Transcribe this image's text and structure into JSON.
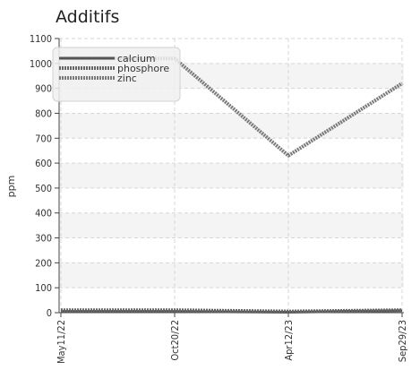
{
  "chart_data": {
    "type": "line",
    "title": "Additifs",
    "xlabel": "",
    "ylabel": "ppm",
    "x": [
      "May11/22",
      "Oct20/22",
      "Apr12/23",
      "Sep29/23"
    ],
    "ylim": [
      0,
      1100
    ],
    "yticks": [
      0,
      100,
      200,
      300,
      400,
      500,
      600,
      700,
      800,
      900,
      1000,
      1100
    ],
    "grid": true,
    "legend_position": "top-left",
    "series": [
      {
        "name": "calcium",
        "values": [
          5,
          5,
          2,
          8
        ],
        "color": "#555555",
        "style": "solid"
      },
      {
        "name": "phosphore",
        "values": [
          10,
          10,
          5,
          10
        ],
        "color": "#666666",
        "style": "dotted"
      },
      {
        "name": "zinc",
        "values": [
          1020,
          1020,
          630,
          920
        ],
        "color": "#7a7a7a",
        "style": "dotted"
      }
    ]
  }
}
